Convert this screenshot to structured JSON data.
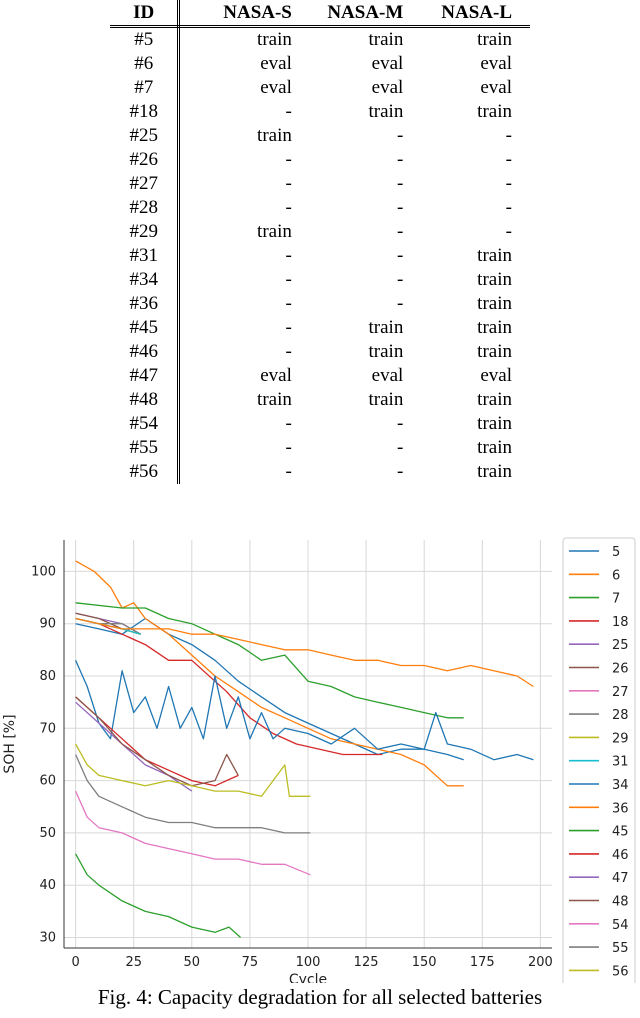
{
  "table": {
    "headers": [
      "ID",
      "NASA-S",
      "NASA-M",
      "NASA-L"
    ],
    "rows": [
      [
        "#5",
        "train",
        "train",
        "train"
      ],
      [
        "#6",
        "eval",
        "eval",
        "eval"
      ],
      [
        "#7",
        "eval",
        "eval",
        "eval"
      ],
      [
        "#18",
        "-",
        "train",
        "train"
      ],
      [
        "#25",
        "train",
        "-",
        "-"
      ],
      [
        "#26",
        "-",
        "-",
        "-"
      ],
      [
        "#27",
        "-",
        "-",
        "-"
      ],
      [
        "#28",
        "-",
        "-",
        "-"
      ],
      [
        "#29",
        "train",
        "-",
        "-"
      ],
      [
        "#31",
        "-",
        "-",
        "train"
      ],
      [
        "#34",
        "-",
        "-",
        "train"
      ],
      [
        "#36",
        "-",
        "-",
        "train"
      ],
      [
        "#45",
        "-",
        "train",
        "train"
      ],
      [
        "#46",
        "-",
        "train",
        "train"
      ],
      [
        "#47",
        "eval",
        "eval",
        "eval"
      ],
      [
        "#48",
        "train",
        "train",
        "train"
      ],
      [
        "#54",
        "-",
        "-",
        "train"
      ],
      [
        "#55",
        "-",
        "-",
        "train"
      ],
      [
        "#56",
        "-",
        "-",
        "train"
      ]
    ]
  },
  "chart_data": {
    "type": "line",
    "title": "",
    "xlabel": "Cycle",
    "ylabel": "SOH [%]",
    "xlim": [
      -5,
      205
    ],
    "ylim": [
      28,
      106
    ],
    "xticks": [
      0,
      25,
      50,
      75,
      100,
      125,
      150,
      175,
      200
    ],
    "yticks": [
      30,
      40,
      50,
      60,
      70,
      80,
      90,
      100
    ],
    "grid": true,
    "legend_position": "right",
    "series": [
      {
        "name": "5",
        "color": "#1f77b4",
        "points": [
          [
            0,
            90
          ],
          [
            10,
            89
          ],
          [
            20,
            88
          ],
          [
            30,
            91
          ],
          [
            40,
            88
          ],
          [
            50,
            86
          ],
          [
            60,
            83
          ],
          [
            70,
            79
          ],
          [
            80,
            76
          ],
          [
            90,
            73
          ],
          [
            100,
            71
          ],
          [
            110,
            69
          ],
          [
            120,
            67
          ],
          [
            130,
            65
          ],
          [
            140,
            66
          ],
          [
            150,
            66
          ],
          [
            160,
            65
          ],
          [
            167,
            64
          ]
        ]
      },
      {
        "name": "6",
        "color": "#ff7f0e",
        "points": [
          [
            0,
            102
          ],
          [
            8,
            100
          ],
          [
            15,
            97
          ],
          [
            20,
            93
          ],
          [
            25,
            94
          ],
          [
            30,
            91
          ],
          [
            40,
            88
          ],
          [
            50,
            84
          ],
          [
            60,
            80
          ],
          [
            70,
            77
          ],
          [
            80,
            74
          ],
          [
            90,
            72
          ],
          [
            100,
            70
          ],
          [
            110,
            68
          ],
          [
            120,
            67
          ],
          [
            130,
            66
          ],
          [
            140,
            65
          ],
          [
            150,
            63
          ],
          [
            160,
            59
          ],
          [
            167,
            59
          ]
        ]
      },
      {
        "name": "7",
        "color": "#2ca02c",
        "points": [
          [
            0,
            94
          ],
          [
            20,
            93
          ],
          [
            30,
            93
          ],
          [
            40,
            91
          ],
          [
            50,
            90
          ],
          [
            60,
            88
          ],
          [
            70,
            86
          ],
          [
            80,
            83
          ],
          [
            90,
            84
          ],
          [
            100,
            79
          ],
          [
            110,
            78
          ],
          [
            120,
            76
          ],
          [
            130,
            75
          ],
          [
            140,
            74
          ],
          [
            150,
            73
          ],
          [
            160,
            72
          ],
          [
            167,
            72
          ]
        ]
      },
      {
        "name": "18",
        "color": "#d62728",
        "points": [
          [
            0,
            91
          ],
          [
            10,
            90
          ],
          [
            20,
            88
          ],
          [
            30,
            86
          ],
          [
            40,
            83
          ],
          [
            50,
            83
          ],
          [
            55,
            81
          ],
          [
            65,
            77
          ],
          [
            75,
            72
          ],
          [
            85,
            69
          ],
          [
            95,
            67
          ],
          [
            105,
            66
          ],
          [
            115,
            65
          ],
          [
            125,
            65
          ],
          [
            132,
            65
          ]
        ]
      },
      {
        "name": "25",
        "color": "#9467bd",
        "points": [
          [
            0,
            92
          ],
          [
            10,
            91
          ],
          [
            20,
            90
          ],
          [
            28,
            88
          ]
        ]
      },
      {
        "name": "26",
        "color": "#8c564b",
        "points": [
          [
            0,
            92
          ],
          [
            10,
            91
          ],
          [
            20,
            89
          ],
          [
            28,
            88
          ]
        ]
      },
      {
        "name": "27",
        "color": "#e377c2",
        "points": [
          [
            0,
            91
          ],
          [
            10,
            90
          ],
          [
            20,
            89
          ],
          [
            28,
            88
          ]
        ]
      },
      {
        "name": "28",
        "color": "#7f7f7f",
        "points": [
          [
            0,
            91
          ],
          [
            10,
            90
          ],
          [
            20,
            90
          ],
          [
            28,
            88
          ]
        ]
      },
      {
        "name": "29",
        "color": "#bcbd22",
        "points": [
          [
            0,
            91
          ],
          [
            10,
            90
          ],
          [
            20,
            89
          ],
          [
            28,
            88
          ]
        ]
      },
      {
        "name": "31",
        "color": "#17becf",
        "points": [
          [
            0,
            91
          ],
          [
            10,
            90
          ],
          [
            20,
            89
          ],
          [
            28,
            88
          ]
        ]
      },
      {
        "name": "34",
        "color": "#1f77b4",
        "points": [
          [
            0,
            83
          ],
          [
            5,
            78
          ],
          [
            10,
            71
          ],
          [
            15,
            68
          ],
          [
            20,
            81
          ],
          [
            25,
            73
          ],
          [
            30,
            76
          ],
          [
            35,
            70
          ],
          [
            40,
            78
          ],
          [
            45,
            70
          ],
          [
            50,
            74
          ],
          [
            55,
            68
          ],
          [
            60,
            80
          ],
          [
            65,
            70
          ],
          [
            70,
            76
          ],
          [
            75,
            68
          ],
          [
            80,
            73
          ],
          [
            85,
            68
          ],
          [
            90,
            70
          ],
          [
            100,
            69
          ],
          [
            110,
            67
          ],
          [
            120,
            70
          ],
          [
            130,
            66
          ],
          [
            140,
            67
          ],
          [
            150,
            66
          ],
          [
            155,
            73
          ],
          [
            160,
            67
          ],
          [
            170,
            66
          ],
          [
            180,
            64
          ],
          [
            190,
            65
          ],
          [
            197,
            64
          ]
        ]
      },
      {
        "name": "36",
        "color": "#ff7f0e",
        "points": [
          [
            0,
            91
          ],
          [
            10,
            90
          ],
          [
            20,
            89
          ],
          [
            30,
            89
          ],
          [
            40,
            89
          ],
          [
            50,
            88
          ],
          [
            60,
            88
          ],
          [
            70,
            87
          ],
          [
            80,
            86
          ],
          [
            90,
            85
          ],
          [
            100,
            85
          ],
          [
            110,
            84
          ],
          [
            120,
            83
          ],
          [
            130,
            83
          ],
          [
            140,
            82
          ],
          [
            150,
            82
          ],
          [
            160,
            81
          ],
          [
            170,
            82
          ],
          [
            180,
            81
          ],
          [
            190,
            80
          ],
          [
            197,
            78
          ]
        ]
      },
      {
        "name": "45",
        "color": "#2ca02c",
        "points": [
          [
            0,
            46
          ],
          [
            5,
            42
          ],
          [
            10,
            40
          ],
          [
            20,
            37
          ],
          [
            30,
            35
          ],
          [
            40,
            34
          ],
          [
            50,
            32
          ],
          [
            60,
            31
          ],
          [
            66,
            32
          ],
          [
            71,
            30
          ]
        ]
      },
      {
        "name": "46",
        "color": "#d62728",
        "points": [
          [
            0,
            76
          ],
          [
            10,
            72
          ],
          [
            20,
            68
          ],
          [
            30,
            64
          ],
          [
            40,
            62
          ],
          [
            50,
            60
          ],
          [
            60,
            59
          ],
          [
            70,
            61
          ]
        ]
      },
      {
        "name": "47",
        "color": "#9467bd",
        "points": [
          [
            0,
            75
          ],
          [
            10,
            71
          ],
          [
            20,
            67
          ],
          [
            30,
            63
          ],
          [
            40,
            61
          ],
          [
            50,
            58
          ]
        ]
      },
      {
        "name": "48",
        "color": "#8c564b",
        "points": [
          [
            0,
            76
          ],
          [
            10,
            72
          ],
          [
            20,
            67
          ],
          [
            30,
            64
          ],
          [
            40,
            61
          ],
          [
            50,
            59
          ],
          [
            60,
            60
          ],
          [
            65,
            65
          ],
          [
            70,
            61
          ]
        ]
      },
      {
        "name": "54",
        "color": "#e377c2",
        "points": [
          [
            0,
            58
          ],
          [
            5,
            53
          ],
          [
            10,
            51
          ],
          [
            20,
            50
          ],
          [
            30,
            48
          ],
          [
            40,
            47
          ],
          [
            50,
            46
          ],
          [
            60,
            45
          ],
          [
            70,
            45
          ],
          [
            80,
            44
          ],
          [
            90,
            44
          ],
          [
            101,
            42
          ]
        ]
      },
      {
        "name": "55",
        "color": "#7f7f7f",
        "points": [
          [
            0,
            65
          ],
          [
            5,
            60
          ],
          [
            10,
            57
          ],
          [
            20,
            55
          ],
          [
            30,
            53
          ],
          [
            40,
            52
          ],
          [
            50,
            52
          ],
          [
            60,
            51
          ],
          [
            70,
            51
          ],
          [
            80,
            51
          ],
          [
            90,
            50
          ],
          [
            101,
            50
          ]
        ]
      },
      {
        "name": "56",
        "color": "#bcbd22",
        "points": [
          [
            0,
            67
          ],
          [
            5,
            63
          ],
          [
            10,
            61
          ],
          [
            20,
            60
          ],
          [
            30,
            59
          ],
          [
            40,
            60
          ],
          [
            50,
            59
          ],
          [
            60,
            58
          ],
          [
            70,
            58
          ],
          [
            80,
            57
          ],
          [
            90,
            63
          ],
          [
            92,
            57
          ],
          [
            101,
            57
          ]
        ]
      }
    ]
  },
  "caption": "Fig. 4: Capacity degradation for all selected batteries"
}
